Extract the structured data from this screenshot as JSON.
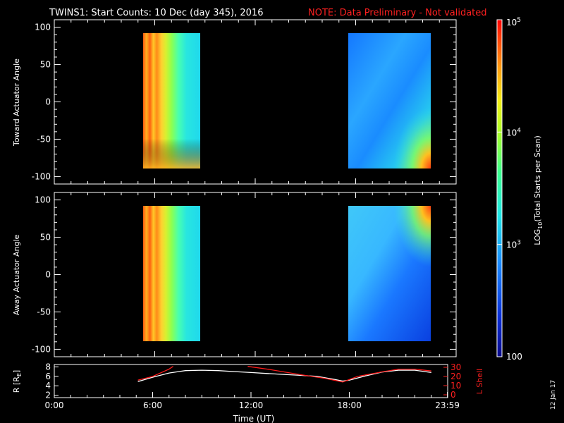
{
  "title": "TWINS1: Start Counts: 10 Dec (day 345), 2016",
  "note": "NOTE: Data Preliminary - Not validated",
  "date_stamp": "12 Jan 17",
  "colors": {
    "background": "#000000",
    "axes": "#ffffff",
    "note": "#ff2020",
    "lshell": "#ff1a1a",
    "radius": "#ffffff"
  },
  "colorbar": {
    "label": "LOG10(Total Starts per Scan)",
    "label_main": "LOG",
    "label_sub": "10",
    "label_rest": "(Total Starts per Scan)",
    "ticks": [
      {
        "value": 100,
        "text": "100"
      },
      {
        "value": 1000,
        "text": "10",
        "exp": "3"
      },
      {
        "value": 10000,
        "text": "10",
        "exp": "4"
      },
      {
        "value": 100000,
        "text": "10",
        "exp": "5"
      }
    ],
    "range": [
      100,
      100000
    ],
    "scale": "log",
    "colormap": "rainbow (blue-cyan-green-yellow-red)"
  },
  "chart_data": [
    {
      "type": "heatmap",
      "ylabel": "Toward Actuator Angle",
      "xlim": [
        0,
        24
      ],
      "ylim": [
        -110,
        110
      ],
      "yticks": [
        100,
        50,
        0,
        -50,
        -100
      ],
      "blocks": [
        {
          "x_start": 5.2,
          "x_end": 8.6,
          "y_range": [
            -90,
            90
          ],
          "dominant_log10": 4.0,
          "left_edge_log10": 4.9
        },
        {
          "x_start": 17.6,
          "x_end": 22.8,
          "y_range": [
            -90,
            90
          ],
          "dominant_log10": 2.7,
          "corner_high_log10": 4.8
        }
      ]
    },
    {
      "type": "heatmap",
      "ylabel": "Away Actuator Angle",
      "xlim": [
        0,
        24
      ],
      "ylim": [
        -110,
        110
      ],
      "yticks": [
        100,
        50,
        0,
        -50,
        -100
      ],
      "blocks": [
        {
          "x_start": 5.2,
          "x_end": 8.6,
          "y_range": [
            -90,
            90
          ],
          "dominant_log10": 4.2,
          "left_edge_log10": 4.9
        },
        {
          "x_start": 17.6,
          "x_end": 22.8,
          "y_range": [
            -90,
            90
          ],
          "dominant_log10": 2.8,
          "corner_high_log10": 4.8
        }
      ]
    },
    {
      "type": "line",
      "ylabel": "R [RE]",
      "ylabel_main": "R [R",
      "ylabel_sub": "E",
      "ylabel_end": "]",
      "y2label": "L Shell",
      "xlabel": "Time (UT)",
      "xlim": [
        0,
        24
      ],
      "xticks": [
        {
          "value": 0,
          "text": "0:00"
        },
        {
          "value": 6,
          "text": "6:00"
        },
        {
          "value": 12,
          "text": "12:00"
        },
        {
          "value": 18,
          "text": "18:00"
        },
        {
          "value": 23.983,
          "text": "23:59"
        }
      ],
      "ylim": [
        1.5,
        8.5
      ],
      "yticks": [
        2,
        4,
        6,
        8
      ],
      "y2lim": [
        0,
        30
      ],
      "y2ticks": [
        0,
        10,
        20,
        30
      ],
      "series": [
        {
          "axis": "left",
          "x": [
            5.1,
            6.0,
            7.0,
            8.0,
            9.0,
            10.0,
            11.0,
            12.0,
            13.0,
            14.0,
            15.0,
            16.0,
            17.0,
            17.6,
            18.0,
            19.0,
            20.0,
            21.0,
            22.0,
            23.0
          ],
          "values": [
            4.9,
            5.8,
            6.7,
            7.2,
            7.3,
            7.2,
            7.0,
            6.8,
            6.6,
            6.4,
            6.2,
            6.0,
            5.4,
            5.0,
            5.2,
            6.1,
            6.9,
            7.3,
            7.3,
            6.8
          ]
        },
        {
          "axis": "right",
          "x": [
            5.1,
            6.0,
            7.0,
            7.25
          ],
          "values": [
            16,
            20,
            28,
            31
          ]
        },
        {
          "axis": "right",
          "x": [
            11.8,
            13.0,
            15.0,
            16.5,
            17.6,
            18.5,
            20.0,
            21.0,
            22.0,
            23.0
          ],
          "values": [
            31,
            28,
            22,
            18,
            14,
            20,
            25,
            28,
            28,
            26
          ]
        }
      ]
    }
  ]
}
